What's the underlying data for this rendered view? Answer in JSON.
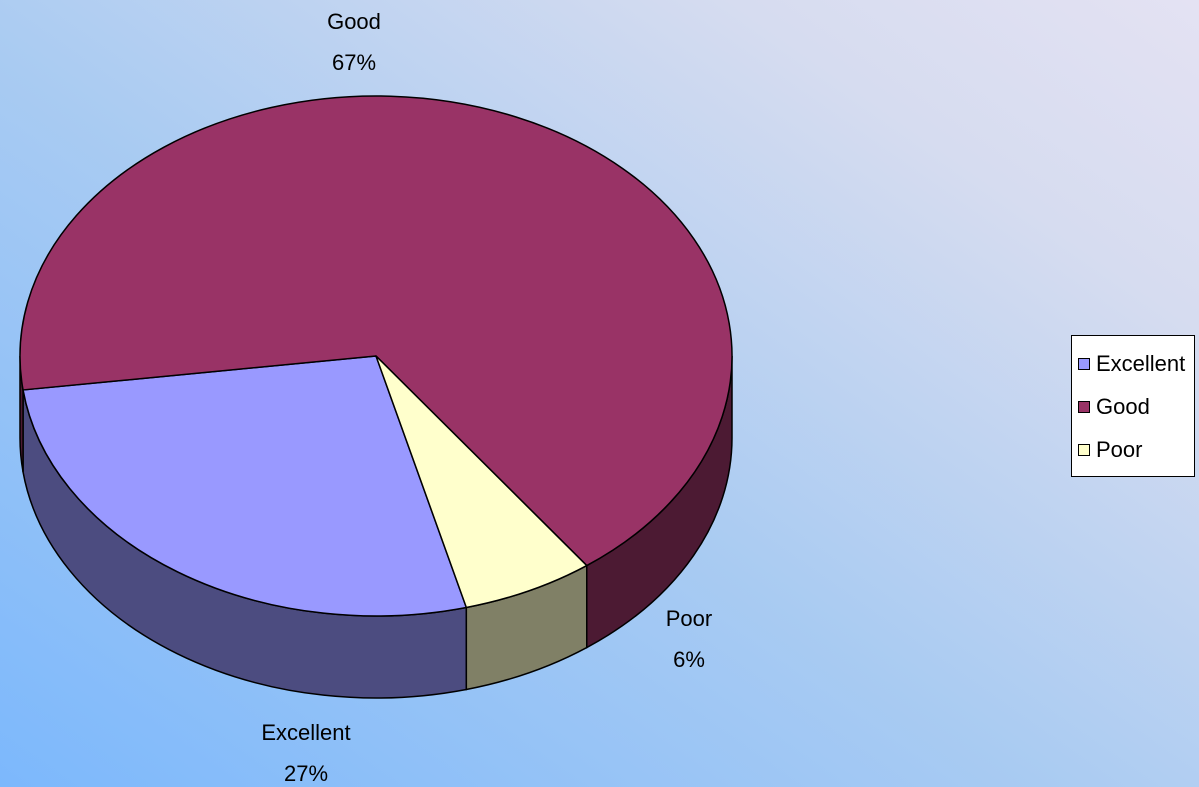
{
  "chart_data": {
    "type": "pie",
    "three_d": true,
    "categories": [
      "Excellent",
      "Good",
      "Poor"
    ],
    "values": [
      27,
      67,
      6
    ],
    "percent_labels": [
      "27%",
      "67%",
      "6%"
    ],
    "colors": {
      "Excellent": "#9999ff",
      "Good": "#993366",
      "Poor": "#ffffcc"
    },
    "side_colors": {
      "Excellent": "#4c4c80",
      "Good": "#4c1a33",
      "Poor": "#808066"
    },
    "legend_position": "right",
    "title": ""
  },
  "legend": {
    "items": [
      {
        "label": "Excellent",
        "color": "#9999ff"
      },
      {
        "label": "Good",
        "color": "#993366"
      },
      {
        "label": "Poor",
        "color": "#ffffcc"
      }
    ]
  }
}
